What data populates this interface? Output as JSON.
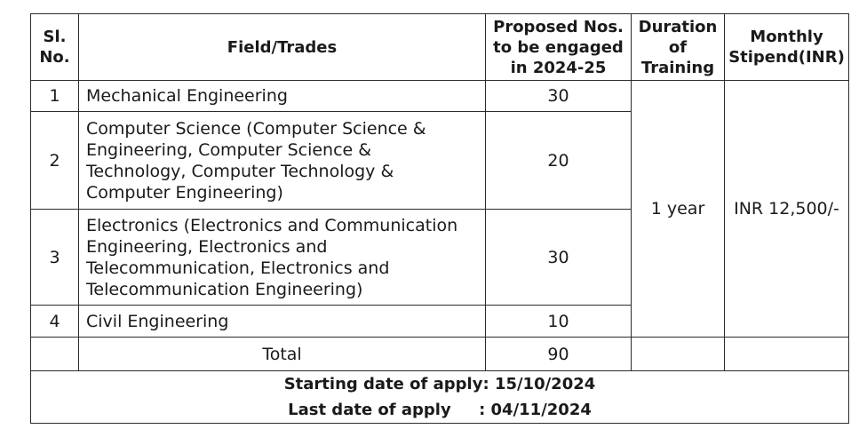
{
  "headers": {
    "sl": [
      "Sl.",
      "No."
    ],
    "field": "Field/Trades",
    "proposed": [
      "Proposed Nos.",
      "to be engaged",
      "in 2024-25"
    ],
    "duration": [
      "Duration",
      "of",
      "Training"
    ],
    "stipend": [
      "Monthly",
      "Stipend(INR)"
    ]
  },
  "rows": [
    {
      "sl": "1",
      "field_lines": [
        "Mechanical Engineering"
      ],
      "nos": "30"
    },
    {
      "sl": "2",
      "field_lines": [
        "Computer Science (Computer Science &",
        "Engineering, Computer Science &",
        "Technology, Computer Technology &",
        "Computer Engineering)"
      ],
      "nos": "20"
    },
    {
      "sl": "3",
      "field_lines": [
        "Electronics (Electronics and Communication",
        "Engineering, Electronics and",
        "Telecommunication, Electronics and",
        "Telecommunication Engineering)"
      ],
      "nos": "30"
    },
    {
      "sl": "4",
      "field_lines": [
        "Civil Engineering"
      ],
      "nos": "10"
    }
  ],
  "duration_value": "1 year",
  "stipend_value": "INR 12,500/-",
  "total": {
    "label": "Total",
    "value": "90"
  },
  "footer": {
    "start_label": "Starting date of apply:",
    "start_date": "15/10/2024",
    "last_label": "Last date of apply",
    "last_date": ": 04/11/2024"
  }
}
